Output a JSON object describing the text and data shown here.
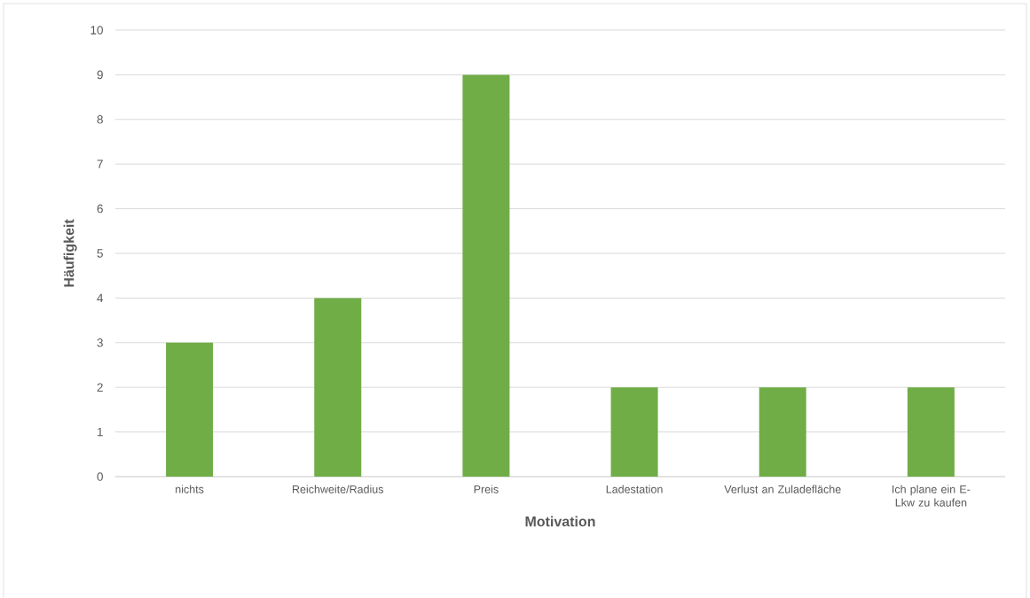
{
  "chart_data": {
    "type": "bar",
    "xlabel": "Motivation",
    "ylabel": "Häufigkeit",
    "categories": [
      "nichts",
      "Reichweite/Radius",
      "Preis",
      "Ladestation",
      "Verlust an Zuladefläche",
      "Ich plane ein E-Lkw zu kaufen"
    ],
    "values": [
      3,
      4,
      9,
      2,
      2,
      2
    ],
    "color": "#70ad47",
    "ylim": [
      0,
      10
    ],
    "yticks": [
      0,
      1,
      2,
      3,
      4,
      5,
      6,
      7,
      8,
      9,
      10
    ],
    "grid": "y"
  }
}
